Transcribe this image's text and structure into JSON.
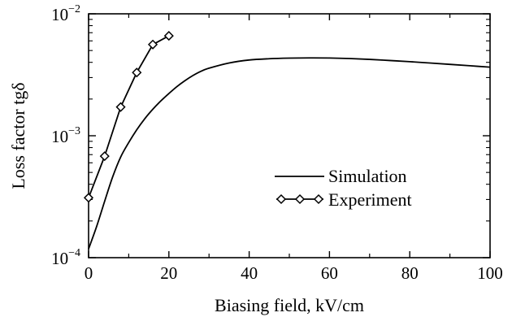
{
  "chart_data": {
    "type": "line",
    "xlabel": "Biasing field, kV/cm",
    "ylabel": "Loss factor tgδ",
    "xlim": [
      0,
      100
    ],
    "ylim": [
      0.0001,
      0.01
    ],
    "yscale": "log",
    "x_ticks": [
      {
        "value": 0,
        "label": "0"
      },
      {
        "value": 20,
        "label": "20"
      },
      {
        "value": 40,
        "label": "40"
      },
      {
        "value": 60,
        "label": "60"
      },
      {
        "value": 80,
        "label": "80"
      },
      {
        "value": 100,
        "label": "100"
      }
    ],
    "y_ticks": [
      {
        "value": 0.0001,
        "base": "10",
        "exp": "−4"
      },
      {
        "value": 0.001,
        "base": "10",
        "exp": "−3"
      },
      {
        "value": 0.01,
        "base": "10",
        "exp": "−2"
      }
    ],
    "grid": false,
    "legend": {
      "position": "center-right"
    },
    "series": [
      {
        "name": "Simulation",
        "marker": "none",
        "color": "#000000",
        "x": [
          0,
          2,
          4,
          6,
          8,
          10,
          12,
          14,
          16,
          18,
          20,
          22,
          24,
          26,
          28,
          30,
          35,
          40,
          45,
          50,
          55,
          60,
          65,
          70,
          75,
          80,
          85,
          90,
          95,
          100
        ],
        "y": [
          0.000118,
          0.00018,
          0.00029,
          0.00046,
          0.00067,
          0.00088,
          0.00112,
          0.00138,
          0.00165,
          0.00193,
          0.00222,
          0.00253,
          0.00283,
          0.00312,
          0.00338,
          0.00358,
          0.00395,
          0.00418,
          0.00428,
          0.00433,
          0.00435,
          0.00434,
          0.0043,
          0.00423,
          0.00414,
          0.00405,
          0.00395,
          0.00385,
          0.00375,
          0.00365
        ]
      },
      {
        "name": "Experiment",
        "marker": "diamond",
        "color": "#000000",
        "x": [
          0,
          4,
          8,
          12,
          16,
          20
        ],
        "y": [
          0.00031,
          0.00068,
          0.00172,
          0.0033,
          0.0056,
          0.0066
        ]
      }
    ]
  }
}
